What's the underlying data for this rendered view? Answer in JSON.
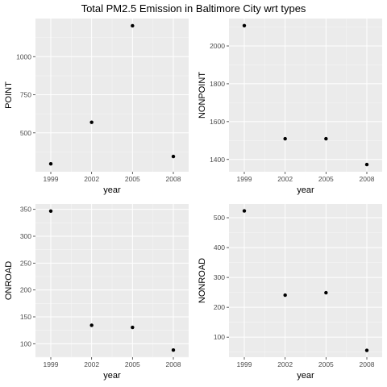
{
  "figure": {
    "title": "Total PM2.5 Emission in Baltimore City wrt types"
  },
  "chart_data": [
    {
      "type": "scatter",
      "xlabel": "year",
      "ylabel": "POINT",
      "x": [
        1999,
        2002,
        2005,
        2008
      ],
      "y": [
        296.8,
        569.3,
        1202.5,
        344.97
      ],
      "xticks": [
        1999,
        2002,
        2005,
        2008
      ],
      "yticks": [
        500,
        750,
        1000
      ],
      "ylim": [
        245,
        1250
      ],
      "grid": true
    },
    {
      "type": "scatter",
      "xlabel": "year",
      "ylabel": "NONPOINT",
      "x": [
        1999,
        2002,
        2005,
        2008
      ],
      "y": [
        2107.6,
        1509.5,
        1509.5,
        1373.2
      ],
      "xticks": [
        1999,
        2002,
        2005,
        2008
      ],
      "yticks": [
        1400,
        1600,
        1800,
        2000
      ],
      "ylim": [
        1335,
        2145
      ],
      "grid": true
    },
    {
      "type": "scatter",
      "xlabel": "year",
      "ylabel": "ONROAD",
      "x": [
        1999,
        2002,
        2005,
        2008
      ],
      "y": [
        346.82,
        134.31,
        130.43,
        88.28
      ],
      "xticks": [
        1999,
        2002,
        2005,
        2008
      ],
      "yticks": [
        100,
        150,
        200,
        250,
        300,
        350
      ],
      "ylim": [
        75,
        360
      ],
      "grid": true
    },
    {
      "type": "scatter",
      "xlabel": "year",
      "ylabel": "NONROAD",
      "x": [
        1999,
        2002,
        2005,
        2008
      ],
      "y": [
        522.94,
        240.85,
        248.93,
        55.82
      ],
      "xticks": [
        1999,
        2002,
        2005,
        2008
      ],
      "yticks": [
        100,
        200,
        300,
        400,
        500
      ],
      "ylim": [
        33,
        546
      ],
      "grid": true
    }
  ]
}
